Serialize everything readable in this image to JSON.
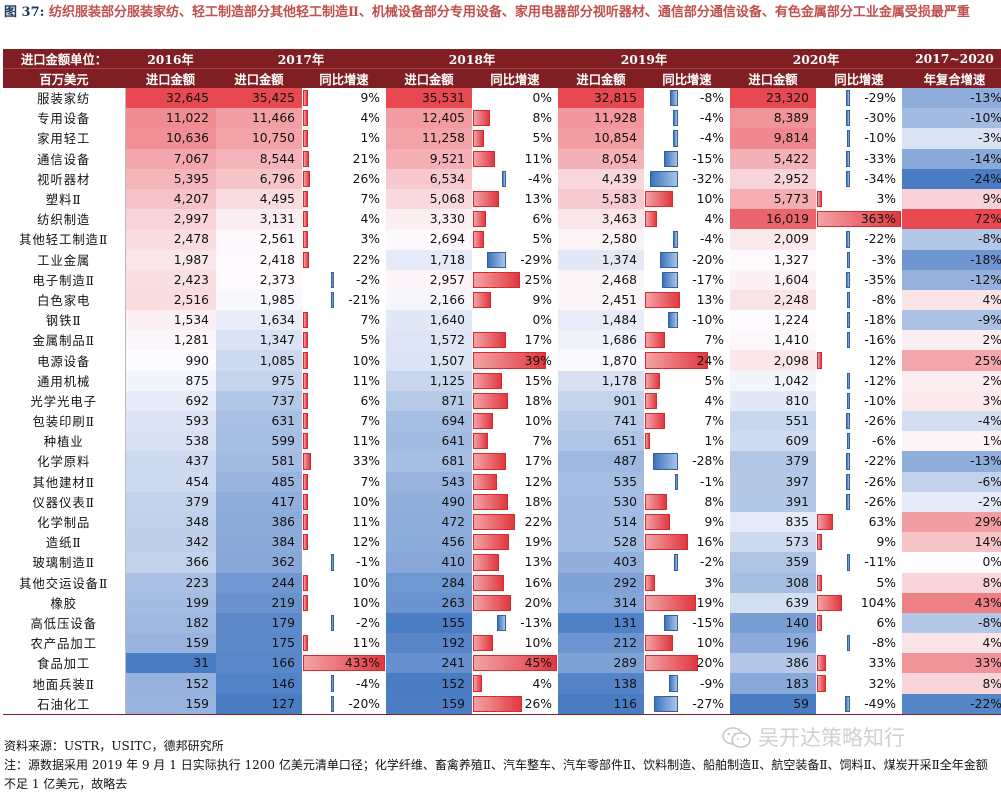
{
  "title_label": "图 37:",
  "title_text": "纺织服装部分服装家纺、轻工制造部分其他轻工制造Ⅱ、机械设备部分专用设备、家用电器部分视听器材、通信部分通信设备、有色金属部分工业金属受损最严重",
  "header": {
    "unit_label": "进口金额单位：",
    "unit_name": "百万美元",
    "years": [
      "2016年",
      "2017年",
      "2018年",
      "2019年",
      "2020年",
      "2017~2020"
    ],
    "col_import": "进口金额",
    "col_yoy": "同比增速",
    "col_cagr": "年复合增速"
  },
  "rows": [
    {
      "name": "服装家纺",
      "v2016": "32,645",
      "v2017": "35,425",
      "g2017": "9%",
      "v2018": "35,531",
      "g2018": "0%",
      "v2019": "32,815",
      "g2019": "-8%",
      "v2020": "23,320",
      "g2020": "-29%",
      "cagr": "-13%"
    },
    {
      "name": "专用设备",
      "v2016": "11,022",
      "v2017": "11,466",
      "g2017": "4%",
      "v2018": "12,405",
      "g2018": "8%",
      "v2019": "11,928",
      "g2019": "-4%",
      "v2020": "8,389",
      "g2020": "-30%",
      "cagr": "-10%"
    },
    {
      "name": "家用轻工",
      "v2016": "10,636",
      "v2017": "10,750",
      "g2017": "1%",
      "v2018": "11,258",
      "g2018": "5%",
      "v2019": "10,854",
      "g2019": "-4%",
      "v2020": "9,814",
      "g2020": "-10%",
      "cagr": "-3%"
    },
    {
      "name": "通信设备",
      "v2016": "7,067",
      "v2017": "8,544",
      "g2017": "21%",
      "v2018": "9,521",
      "g2018": "11%",
      "v2019": "8,054",
      "g2019": "-15%",
      "v2020": "5,422",
      "g2020": "-33%",
      "cagr": "-14%"
    },
    {
      "name": "视听器材",
      "v2016": "5,395",
      "v2017": "6,796",
      "g2017": "26%",
      "v2018": "6,534",
      "g2018": "-4%",
      "v2019": "4,439",
      "g2019": "-32%",
      "v2020": "2,952",
      "g2020": "-34%",
      "cagr": "-24%"
    },
    {
      "name": "塑料Ⅱ",
      "v2016": "4,207",
      "v2017": "4,495",
      "g2017": "7%",
      "v2018": "5,068",
      "g2018": "13%",
      "v2019": "5,583",
      "g2019": "10%",
      "v2020": "5,773",
      "g2020": "3%",
      "cagr": "9%"
    },
    {
      "name": "纺织制造",
      "v2016": "2,997",
      "v2017": "3,131",
      "g2017": "4%",
      "v2018": "3,330",
      "g2018": "6%",
      "v2019": "3,463",
      "g2019": "4%",
      "v2020": "16,019",
      "g2020": "363%",
      "cagr": "72%"
    },
    {
      "name": "其他轻工制造Ⅱ",
      "v2016": "2,478",
      "v2017": "2,561",
      "g2017": "3%",
      "v2018": "2,694",
      "g2018": "5%",
      "v2019": "2,580",
      "g2019": "-4%",
      "v2020": "2,009",
      "g2020": "-22%",
      "cagr": "-8%"
    },
    {
      "name": "工业金属",
      "v2016": "1,987",
      "v2017": "2,418",
      "g2017": "22%",
      "v2018": "1,718",
      "g2018": "-29%",
      "v2019": "1,374",
      "g2019": "-20%",
      "v2020": "1,327",
      "g2020": "-3%",
      "cagr": "-18%"
    },
    {
      "name": "电子制造Ⅱ",
      "v2016": "2,423",
      "v2017": "2,373",
      "g2017": "-2%",
      "v2018": "2,957",
      "g2018": "25%",
      "v2019": "2,468",
      "g2019": "-17%",
      "v2020": "1,604",
      "g2020": "-35%",
      "cagr": "-12%"
    },
    {
      "name": "白色家电",
      "v2016": "2,516",
      "v2017": "1,985",
      "g2017": "-21%",
      "v2018": "2,166",
      "g2018": "9%",
      "v2019": "2,451",
      "g2019": "13%",
      "v2020": "2,248",
      "g2020": "-8%",
      "cagr": "4%"
    },
    {
      "name": "钢铁Ⅱ",
      "v2016": "1,534",
      "v2017": "1,634",
      "g2017": "7%",
      "v2018": "1,640",
      "g2018": "0%",
      "v2019": "1,484",
      "g2019": "-10%",
      "v2020": "1,224",
      "g2020": "-18%",
      "cagr": "-9%"
    },
    {
      "name": "金属制品Ⅱ",
      "v2016": "1,281",
      "v2017": "1,347",
      "g2017": "5%",
      "v2018": "1,572",
      "g2018": "17%",
      "v2019": "1,686",
      "g2019": "7%",
      "v2020": "1,410",
      "g2020": "-16%",
      "cagr": "2%"
    },
    {
      "name": "电源设备",
      "v2016": "990",
      "v2017": "1,085",
      "g2017": "10%",
      "v2018": "1,507",
      "g2018": "39%",
      "v2019": "1,870",
      "g2019": "24%",
      "v2020": "2,098",
      "g2020": "12%",
      "cagr": "25%"
    },
    {
      "name": "通用机械",
      "v2016": "875",
      "v2017": "975",
      "g2017": "11%",
      "v2018": "1,125",
      "g2018": "15%",
      "v2019": "1,178",
      "g2019": "5%",
      "v2020": "1,042",
      "g2020": "-12%",
      "cagr": "2%"
    },
    {
      "name": "光学光电子",
      "v2016": "692",
      "v2017": "737",
      "g2017": "6%",
      "v2018": "871",
      "g2018": "18%",
      "v2019": "901",
      "g2019": "4%",
      "v2020": "810",
      "g2020": "-10%",
      "cagr": "3%"
    },
    {
      "name": "包装印刷Ⅱ",
      "v2016": "593",
      "v2017": "631",
      "g2017": "7%",
      "v2018": "694",
      "g2018": "10%",
      "v2019": "741",
      "g2019": "7%",
      "v2020": "551",
      "g2020": "-26%",
      "cagr": "-4%"
    },
    {
      "name": "种植业",
      "v2016": "538",
      "v2017": "599",
      "g2017": "11%",
      "v2018": "641",
      "g2018": "7%",
      "v2019": "651",
      "g2019": "1%",
      "v2020": "609",
      "g2020": "-6%",
      "cagr": "1%"
    },
    {
      "name": "化学原料",
      "v2016": "437",
      "v2017": "581",
      "g2017": "33%",
      "v2018": "681",
      "g2018": "17%",
      "v2019": "487",
      "g2019": "-28%",
      "v2020": "379",
      "g2020": "-22%",
      "cagr": "-13%"
    },
    {
      "name": "其他建材Ⅱ",
      "v2016": "454",
      "v2017": "485",
      "g2017": "7%",
      "v2018": "543",
      "g2018": "12%",
      "v2019": "535",
      "g2019": "-1%",
      "v2020": "397",
      "g2020": "-26%",
      "cagr": "-6%"
    },
    {
      "name": "仪器仪表Ⅱ",
      "v2016": "379",
      "v2017": "417",
      "g2017": "10%",
      "v2018": "490",
      "g2018": "18%",
      "v2019": "530",
      "g2019": "8%",
      "v2020": "391",
      "g2020": "-26%",
      "cagr": "-2%"
    },
    {
      "name": "化学制品",
      "v2016": "348",
      "v2017": "386",
      "g2017": "11%",
      "v2018": "472",
      "g2018": "22%",
      "v2019": "514",
      "g2019": "9%",
      "v2020": "835",
      "g2020": "63%",
      "cagr": "29%"
    },
    {
      "name": "造纸Ⅱ",
      "v2016": "342",
      "v2017": "384",
      "g2017": "12%",
      "v2018": "456",
      "g2018": "19%",
      "v2019": "528",
      "g2019": "16%",
      "v2020": "573",
      "g2020": "9%",
      "cagr": "14%"
    },
    {
      "name": "玻璃制造Ⅱ",
      "v2016": "366",
      "v2017": "362",
      "g2017": "-1%",
      "v2018": "410",
      "g2018": "13%",
      "v2019": "403",
      "g2019": "-2%",
      "v2020": "359",
      "g2020": "-11%",
      "cagr": "0%"
    },
    {
      "name": "其他交运设备Ⅱ",
      "v2016": "223",
      "v2017": "244",
      "g2017": "10%",
      "v2018": "284",
      "g2018": "16%",
      "v2019": "292",
      "g2019": "3%",
      "v2020": "308",
      "g2020": "5%",
      "cagr": "8%"
    },
    {
      "name": "橡胶",
      "v2016": "199",
      "v2017": "219",
      "g2017": "10%",
      "v2018": "263",
      "g2018": "20%",
      "v2019": "314",
      "g2019": "19%",
      "v2020": "639",
      "g2020": "104%",
      "cagr": "43%"
    },
    {
      "name": "高低压设备",
      "v2016": "182",
      "v2017": "179",
      "g2017": "-2%",
      "v2018": "155",
      "g2018": "-13%",
      "v2019": "131",
      "g2019": "-15%",
      "v2020": "140",
      "g2020": "6%",
      "cagr": "-8%"
    },
    {
      "name": "农产品加工",
      "v2016": "159",
      "v2017": "175",
      "g2017": "11%",
      "v2018": "192",
      "g2018": "10%",
      "v2019": "212",
      "g2019": "10%",
      "v2020": "196",
      "g2020": "-8%",
      "cagr": "4%"
    },
    {
      "name": "食品加工",
      "v2016": "31",
      "v2017": "166",
      "g2017": "433%",
      "v2018": "241",
      "g2018": "45%",
      "v2019": "289",
      "g2019": "20%",
      "v2020": "386",
      "g2020": "33%",
      "cagr": "33%"
    },
    {
      "name": "地面兵装Ⅱ",
      "v2016": "152",
      "v2017": "146",
      "g2017": "-4%",
      "v2018": "152",
      "g2018": "4%",
      "v2019": "138",
      "g2019": "-9%",
      "v2020": "183",
      "g2020": "32%",
      "cagr": "8%"
    },
    {
      "name": "石油化工",
      "v2016": "159",
      "v2017": "127",
      "g2017": "-20%",
      "v2018": "159",
      "g2018": "26%",
      "v2019": "116",
      "g2019": "-27%",
      "v2020": "59",
      "g2020": "-49%",
      "cagr": "-22%"
    }
  ],
  "source": "资料来源：USTR，USITC，德邦研究所",
  "note": "注：源数据采用 2019 年 9 月 1 日实际执行 1200 亿美元清单口径；化学纤维、畜禽养殖Ⅱ、汽车整车、汽车零部件Ⅱ、饮料制造、船舶制造Ⅱ、航空装备Ⅱ、饲料Ⅱ、煤炭开采Ⅱ全年金额不足 1 亿美元，故略去",
  "watermark": "吴开达策略知行",
  "colors": {
    "header_bg": "#7f1f23",
    "title": "#c0504d",
    "bar_pos": "#e0383f",
    "bar_neg": "#3c73bd"
  }
}
